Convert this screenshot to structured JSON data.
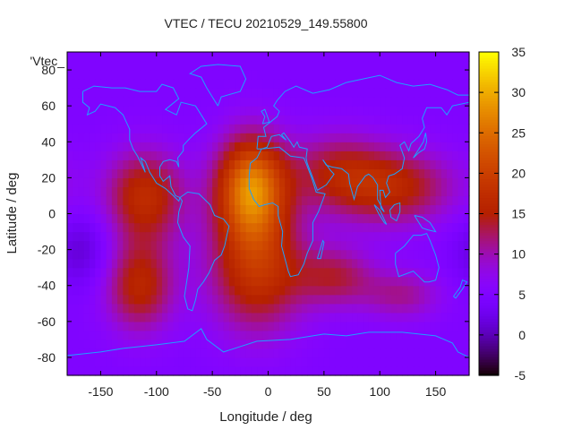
{
  "chart_data": {
    "type": "heatmap",
    "title": "VTEC / TECU 20210529_149.55800",
    "xlabel": "Longitude / deg",
    "ylabel": "Latitude / deg",
    "legend_label": "'Vtec_",
    "xlim": [
      -180,
      180
    ],
    "ylim": [
      -90,
      90
    ],
    "x_ticks": [
      -150,
      -100,
      -50,
      0,
      50,
      100,
      150
    ],
    "y_ticks": [
      -80,
      -60,
      -40,
      -20,
      0,
      20,
      40,
      60,
      80
    ],
    "colorbar": {
      "min": -5,
      "max": 35,
      "ticks": [
        -5,
        0,
        5,
        10,
        15,
        20,
        25,
        30,
        35
      ]
    },
    "background_value": 5,
    "enhancements": [
      {
        "lon": -15,
        "lat": 15,
        "amplitude": 21,
        "lon_sigma": 22,
        "lat_sigma": 20
      },
      {
        "lon": -10,
        "lat": -30,
        "amplitude": 13,
        "lon_sigma": 30,
        "lat_sigma": 25
      },
      {
        "lon": -110,
        "lat": 10,
        "amplitude": 12,
        "lon_sigma": 25,
        "lat_sigma": 18
      },
      {
        "lon": -115,
        "lat": -40,
        "amplitude": 11,
        "lon_sigma": 22,
        "lat_sigma": 18
      },
      {
        "lon": 110,
        "lat": 15,
        "amplitude": 11,
        "lon_sigma": 40,
        "lat_sigma": 15
      },
      {
        "lon": 60,
        "lat": -35,
        "amplitude": 8,
        "lon_sigma": 25,
        "lat_sigma": 12
      },
      {
        "lon": 120,
        "lat": -45,
        "amplitude": 6,
        "lon_sigma": 25,
        "lat_sigma": 10
      },
      {
        "lon": 60,
        "lat": 25,
        "amplitude": 7,
        "lon_sigma": 30,
        "lat_sigma": 15
      }
    ],
    "depressions": [
      {
        "lon": -165,
        "lat": -20,
        "amplitude": -4,
        "lon_sigma": 20,
        "lat_sigma": 15
      }
    ]
  },
  "colors": {
    "map_outline": "#1ea0ff",
    "axis": "#000000"
  }
}
